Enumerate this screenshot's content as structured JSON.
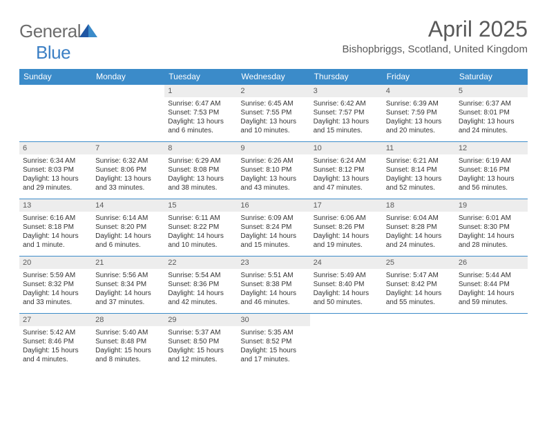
{
  "logo": {
    "text_general": "General",
    "text_blue": "Blue"
  },
  "title": "April 2025",
  "location": "Bishopbriggs, Scotland, United Kingdom",
  "colors": {
    "header_bg": "#3b8bc9",
    "header_text": "#ffffff",
    "daynum_bg": "#ededed",
    "border": "#3b8bc9",
    "text": "#333333",
    "title_text": "#595959"
  },
  "day_names": [
    "Sunday",
    "Monday",
    "Tuesday",
    "Wednesday",
    "Thursday",
    "Friday",
    "Saturday"
  ],
  "weeks": [
    [
      {
        "n": "",
        "sr": "",
        "ss": "",
        "dl": ""
      },
      {
        "n": "",
        "sr": "",
        "ss": "",
        "dl": ""
      },
      {
        "n": "1",
        "sr": "Sunrise: 6:47 AM",
        "ss": "Sunset: 7:53 PM",
        "dl": "Daylight: 13 hours and 6 minutes."
      },
      {
        "n": "2",
        "sr": "Sunrise: 6:45 AM",
        "ss": "Sunset: 7:55 PM",
        "dl": "Daylight: 13 hours and 10 minutes."
      },
      {
        "n": "3",
        "sr": "Sunrise: 6:42 AM",
        "ss": "Sunset: 7:57 PM",
        "dl": "Daylight: 13 hours and 15 minutes."
      },
      {
        "n": "4",
        "sr": "Sunrise: 6:39 AM",
        "ss": "Sunset: 7:59 PM",
        "dl": "Daylight: 13 hours and 20 minutes."
      },
      {
        "n": "5",
        "sr": "Sunrise: 6:37 AM",
        "ss": "Sunset: 8:01 PM",
        "dl": "Daylight: 13 hours and 24 minutes."
      }
    ],
    [
      {
        "n": "6",
        "sr": "Sunrise: 6:34 AM",
        "ss": "Sunset: 8:03 PM",
        "dl": "Daylight: 13 hours and 29 minutes."
      },
      {
        "n": "7",
        "sr": "Sunrise: 6:32 AM",
        "ss": "Sunset: 8:06 PM",
        "dl": "Daylight: 13 hours and 33 minutes."
      },
      {
        "n": "8",
        "sr": "Sunrise: 6:29 AM",
        "ss": "Sunset: 8:08 PM",
        "dl": "Daylight: 13 hours and 38 minutes."
      },
      {
        "n": "9",
        "sr": "Sunrise: 6:26 AM",
        "ss": "Sunset: 8:10 PM",
        "dl": "Daylight: 13 hours and 43 minutes."
      },
      {
        "n": "10",
        "sr": "Sunrise: 6:24 AM",
        "ss": "Sunset: 8:12 PM",
        "dl": "Daylight: 13 hours and 47 minutes."
      },
      {
        "n": "11",
        "sr": "Sunrise: 6:21 AM",
        "ss": "Sunset: 8:14 PM",
        "dl": "Daylight: 13 hours and 52 minutes."
      },
      {
        "n": "12",
        "sr": "Sunrise: 6:19 AM",
        "ss": "Sunset: 8:16 PM",
        "dl": "Daylight: 13 hours and 56 minutes."
      }
    ],
    [
      {
        "n": "13",
        "sr": "Sunrise: 6:16 AM",
        "ss": "Sunset: 8:18 PM",
        "dl": "Daylight: 14 hours and 1 minute."
      },
      {
        "n": "14",
        "sr": "Sunrise: 6:14 AM",
        "ss": "Sunset: 8:20 PM",
        "dl": "Daylight: 14 hours and 6 minutes."
      },
      {
        "n": "15",
        "sr": "Sunrise: 6:11 AM",
        "ss": "Sunset: 8:22 PM",
        "dl": "Daylight: 14 hours and 10 minutes."
      },
      {
        "n": "16",
        "sr": "Sunrise: 6:09 AM",
        "ss": "Sunset: 8:24 PM",
        "dl": "Daylight: 14 hours and 15 minutes."
      },
      {
        "n": "17",
        "sr": "Sunrise: 6:06 AM",
        "ss": "Sunset: 8:26 PM",
        "dl": "Daylight: 14 hours and 19 minutes."
      },
      {
        "n": "18",
        "sr": "Sunrise: 6:04 AM",
        "ss": "Sunset: 8:28 PM",
        "dl": "Daylight: 14 hours and 24 minutes."
      },
      {
        "n": "19",
        "sr": "Sunrise: 6:01 AM",
        "ss": "Sunset: 8:30 PM",
        "dl": "Daylight: 14 hours and 28 minutes."
      }
    ],
    [
      {
        "n": "20",
        "sr": "Sunrise: 5:59 AM",
        "ss": "Sunset: 8:32 PM",
        "dl": "Daylight: 14 hours and 33 minutes."
      },
      {
        "n": "21",
        "sr": "Sunrise: 5:56 AM",
        "ss": "Sunset: 8:34 PM",
        "dl": "Daylight: 14 hours and 37 minutes."
      },
      {
        "n": "22",
        "sr": "Sunrise: 5:54 AM",
        "ss": "Sunset: 8:36 PM",
        "dl": "Daylight: 14 hours and 42 minutes."
      },
      {
        "n": "23",
        "sr": "Sunrise: 5:51 AM",
        "ss": "Sunset: 8:38 PM",
        "dl": "Daylight: 14 hours and 46 minutes."
      },
      {
        "n": "24",
        "sr": "Sunrise: 5:49 AM",
        "ss": "Sunset: 8:40 PM",
        "dl": "Daylight: 14 hours and 50 minutes."
      },
      {
        "n": "25",
        "sr": "Sunrise: 5:47 AM",
        "ss": "Sunset: 8:42 PM",
        "dl": "Daylight: 14 hours and 55 minutes."
      },
      {
        "n": "26",
        "sr": "Sunrise: 5:44 AM",
        "ss": "Sunset: 8:44 PM",
        "dl": "Daylight: 14 hours and 59 minutes."
      }
    ],
    [
      {
        "n": "27",
        "sr": "Sunrise: 5:42 AM",
        "ss": "Sunset: 8:46 PM",
        "dl": "Daylight: 15 hours and 4 minutes."
      },
      {
        "n": "28",
        "sr": "Sunrise: 5:40 AM",
        "ss": "Sunset: 8:48 PM",
        "dl": "Daylight: 15 hours and 8 minutes."
      },
      {
        "n": "29",
        "sr": "Sunrise: 5:37 AM",
        "ss": "Sunset: 8:50 PM",
        "dl": "Daylight: 15 hours and 12 minutes."
      },
      {
        "n": "30",
        "sr": "Sunrise: 5:35 AM",
        "ss": "Sunset: 8:52 PM",
        "dl": "Daylight: 15 hours and 17 minutes."
      },
      {
        "n": "",
        "sr": "",
        "ss": "",
        "dl": ""
      },
      {
        "n": "",
        "sr": "",
        "ss": "",
        "dl": ""
      },
      {
        "n": "",
        "sr": "",
        "ss": "",
        "dl": ""
      }
    ]
  ]
}
